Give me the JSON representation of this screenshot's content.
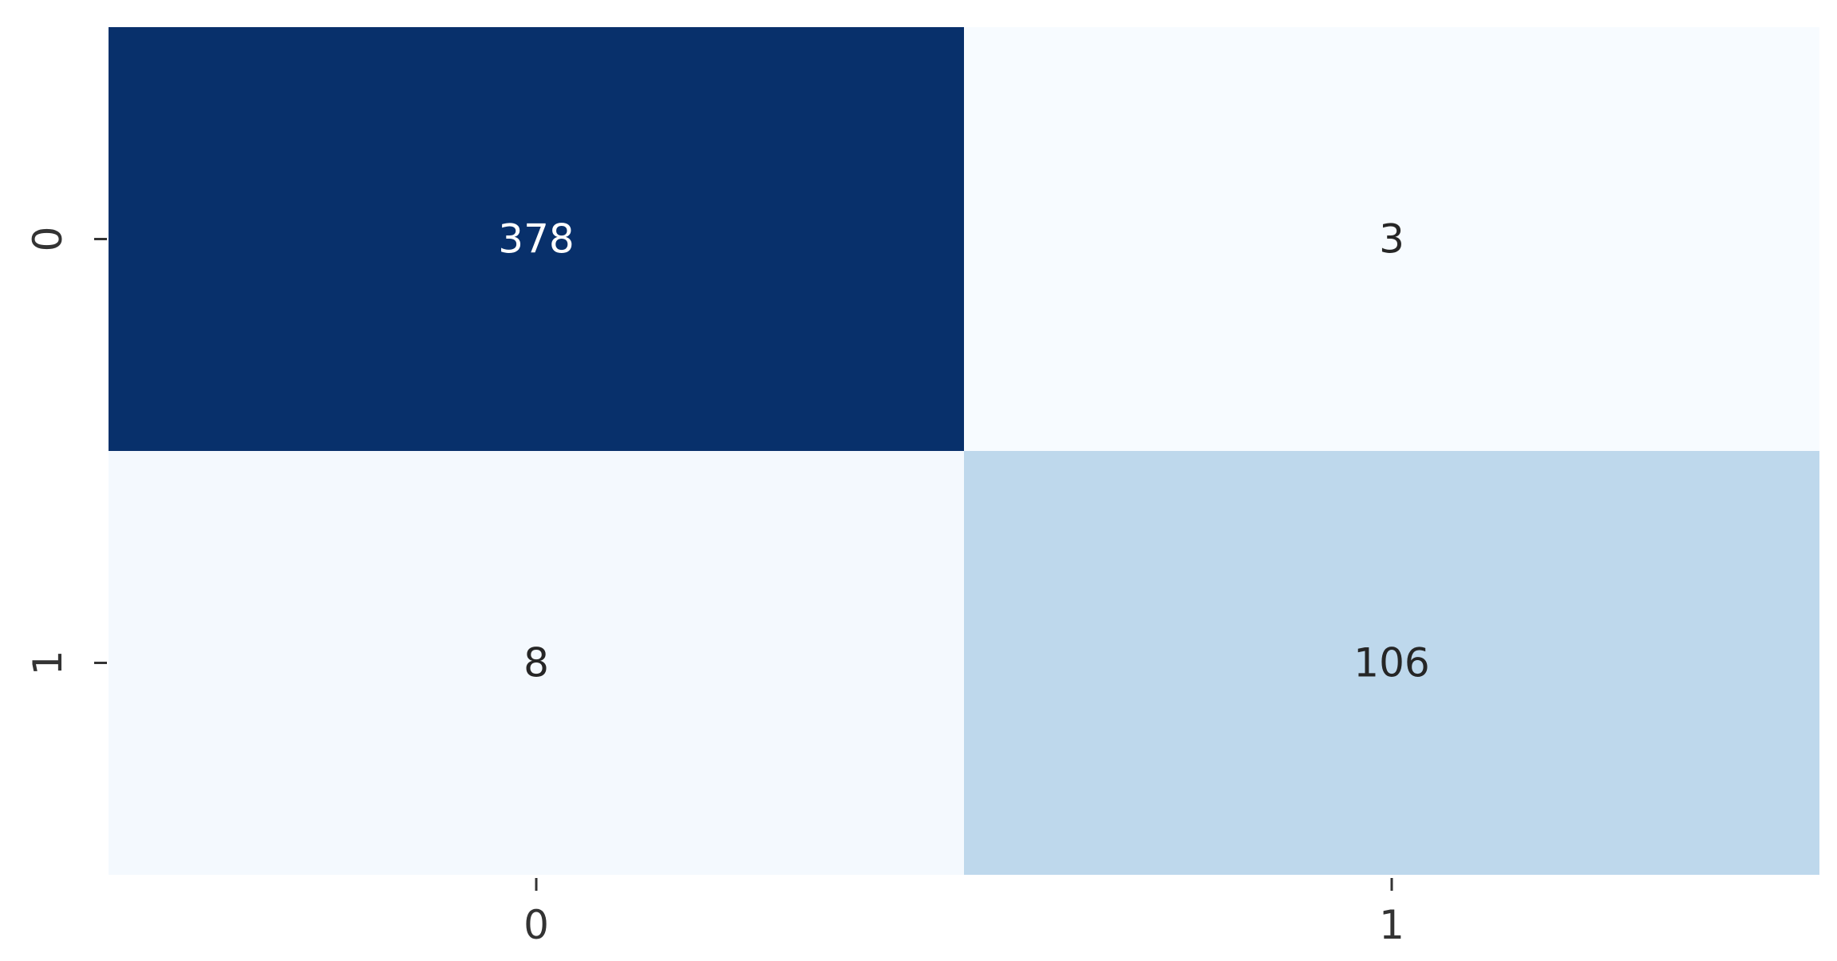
{
  "chart_data": {
    "type": "heatmap",
    "title": "",
    "xlabel": "",
    "ylabel": "",
    "x_categories": [
      "0",
      "1"
    ],
    "y_categories": [
      "0",
      "1"
    ],
    "values": [
      [
        378,
        3
      ],
      [
        8,
        106
      ]
    ],
    "colormap": "Blues",
    "color_scale": {
      "low": "#f7fbff",
      "mid": "#bdd7ec",
      "high": "#08306b"
    },
    "annotation_colors": {
      "light_text": "#ffffff",
      "dark_text": "#262626"
    },
    "colorbar": false,
    "grid": false
  }
}
